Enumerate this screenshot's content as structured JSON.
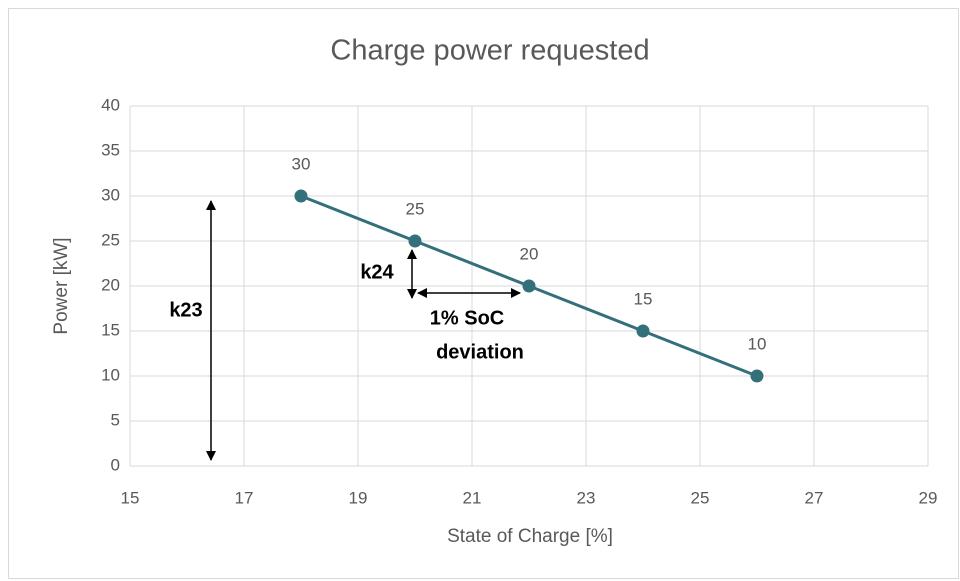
{
  "chart_data": {
    "type": "line",
    "title": "Charge power requested",
    "x_label": "State of Charge [%]",
    "y_label": "Power [kW]",
    "x": [
      18,
      20,
      22,
      24,
      26
    ],
    "values": [
      30,
      25,
      20,
      15,
      10
    ],
    "color": "#33707a",
    "xlim": [
      15,
      29
    ],
    "xticks": [
      15,
      17,
      19,
      21,
      23,
      25,
      27,
      29
    ],
    "ylim": [
      0,
      40
    ],
    "yticks": [
      0,
      5,
      10,
      15,
      20,
      25,
      30,
      35,
      40
    ],
    "grid": true,
    "annotations": [
      "k23",
      "k24",
      "1% SoC",
      "deviation"
    ]
  }
}
